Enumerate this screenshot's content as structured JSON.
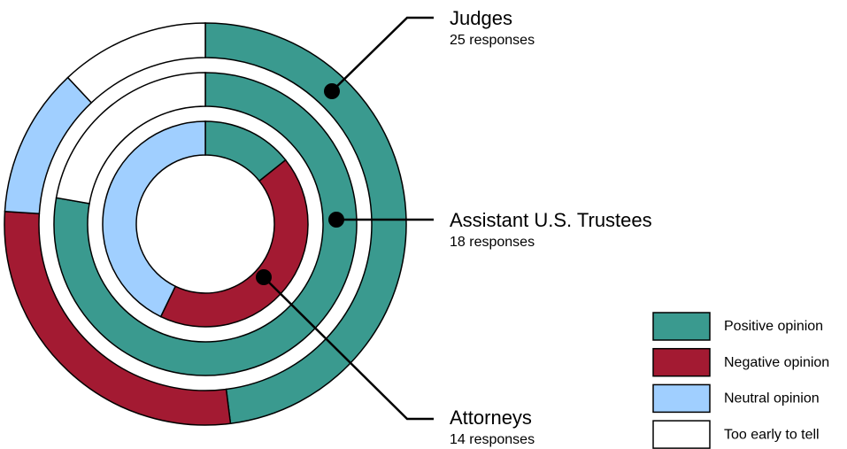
{
  "chart_data": {
    "type": "donut",
    "categories": [
      "Positive opinion",
      "Negative opinion",
      "Neutral opinion",
      "Too early to tell"
    ],
    "colors": [
      "#3a9a8f",
      "#a31a32",
      "#a0cfff",
      "#ffffff"
    ],
    "series": [
      {
        "name": "Judges",
        "responses_label": "25 responses",
        "values": [
          12,
          7,
          3,
          3
        ]
      },
      {
        "name": "Assistant U.S. Trustees",
        "responses_label": "18 responses",
        "values": [
          14,
          0,
          0,
          4
        ]
      },
      {
        "name": "Attorneys",
        "responses_label": "14 responses",
        "values": [
          2,
          6,
          6,
          0
        ]
      }
    ]
  }
}
